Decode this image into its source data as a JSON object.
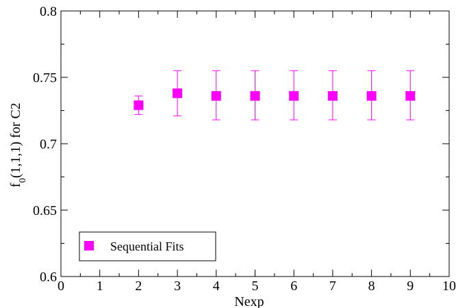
{
  "chart_data": {
    "type": "scatter",
    "xlabel": "Nexp",
    "ylabel": {
      "prefix": "f",
      "subscript": "0",
      "suffix": "(1,1,1)  for  C2"
    },
    "xlim": [
      0,
      10
    ],
    "ylim": [
      0.6,
      0.8
    ],
    "x_ticks": [
      0,
      1,
      2,
      3,
      4,
      5,
      6,
      7,
      8,
      9,
      10
    ],
    "x_tick_labels": [
      "0",
      "1",
      "2",
      "3",
      "4",
      "5",
      "6",
      "7",
      "8",
      "9",
      "10"
    ],
    "y_ticks": [
      0.6,
      0.65,
      0.7,
      0.75,
      0.8
    ],
    "y_tick_labels": [
      "0.6",
      "0.65",
      "0.7",
      "0.75",
      "0.8"
    ],
    "grid": false,
    "legend_position": "bottom-left",
    "series": [
      {
        "name": "Sequential Fits",
        "color": "#ff00ff",
        "marker": "square",
        "x": [
          2,
          3,
          4,
          5,
          6,
          7,
          8,
          9
        ],
        "y": [
          0.729,
          0.738,
          0.736,
          0.736,
          0.736,
          0.736,
          0.736,
          0.736
        ],
        "err_low": [
          0.722,
          0.721,
          0.718,
          0.718,
          0.718,
          0.718,
          0.718,
          0.718
        ],
        "err_high": [
          0.736,
          0.755,
          0.755,
          0.755,
          0.755,
          0.755,
          0.755,
          0.755
        ]
      }
    ]
  }
}
